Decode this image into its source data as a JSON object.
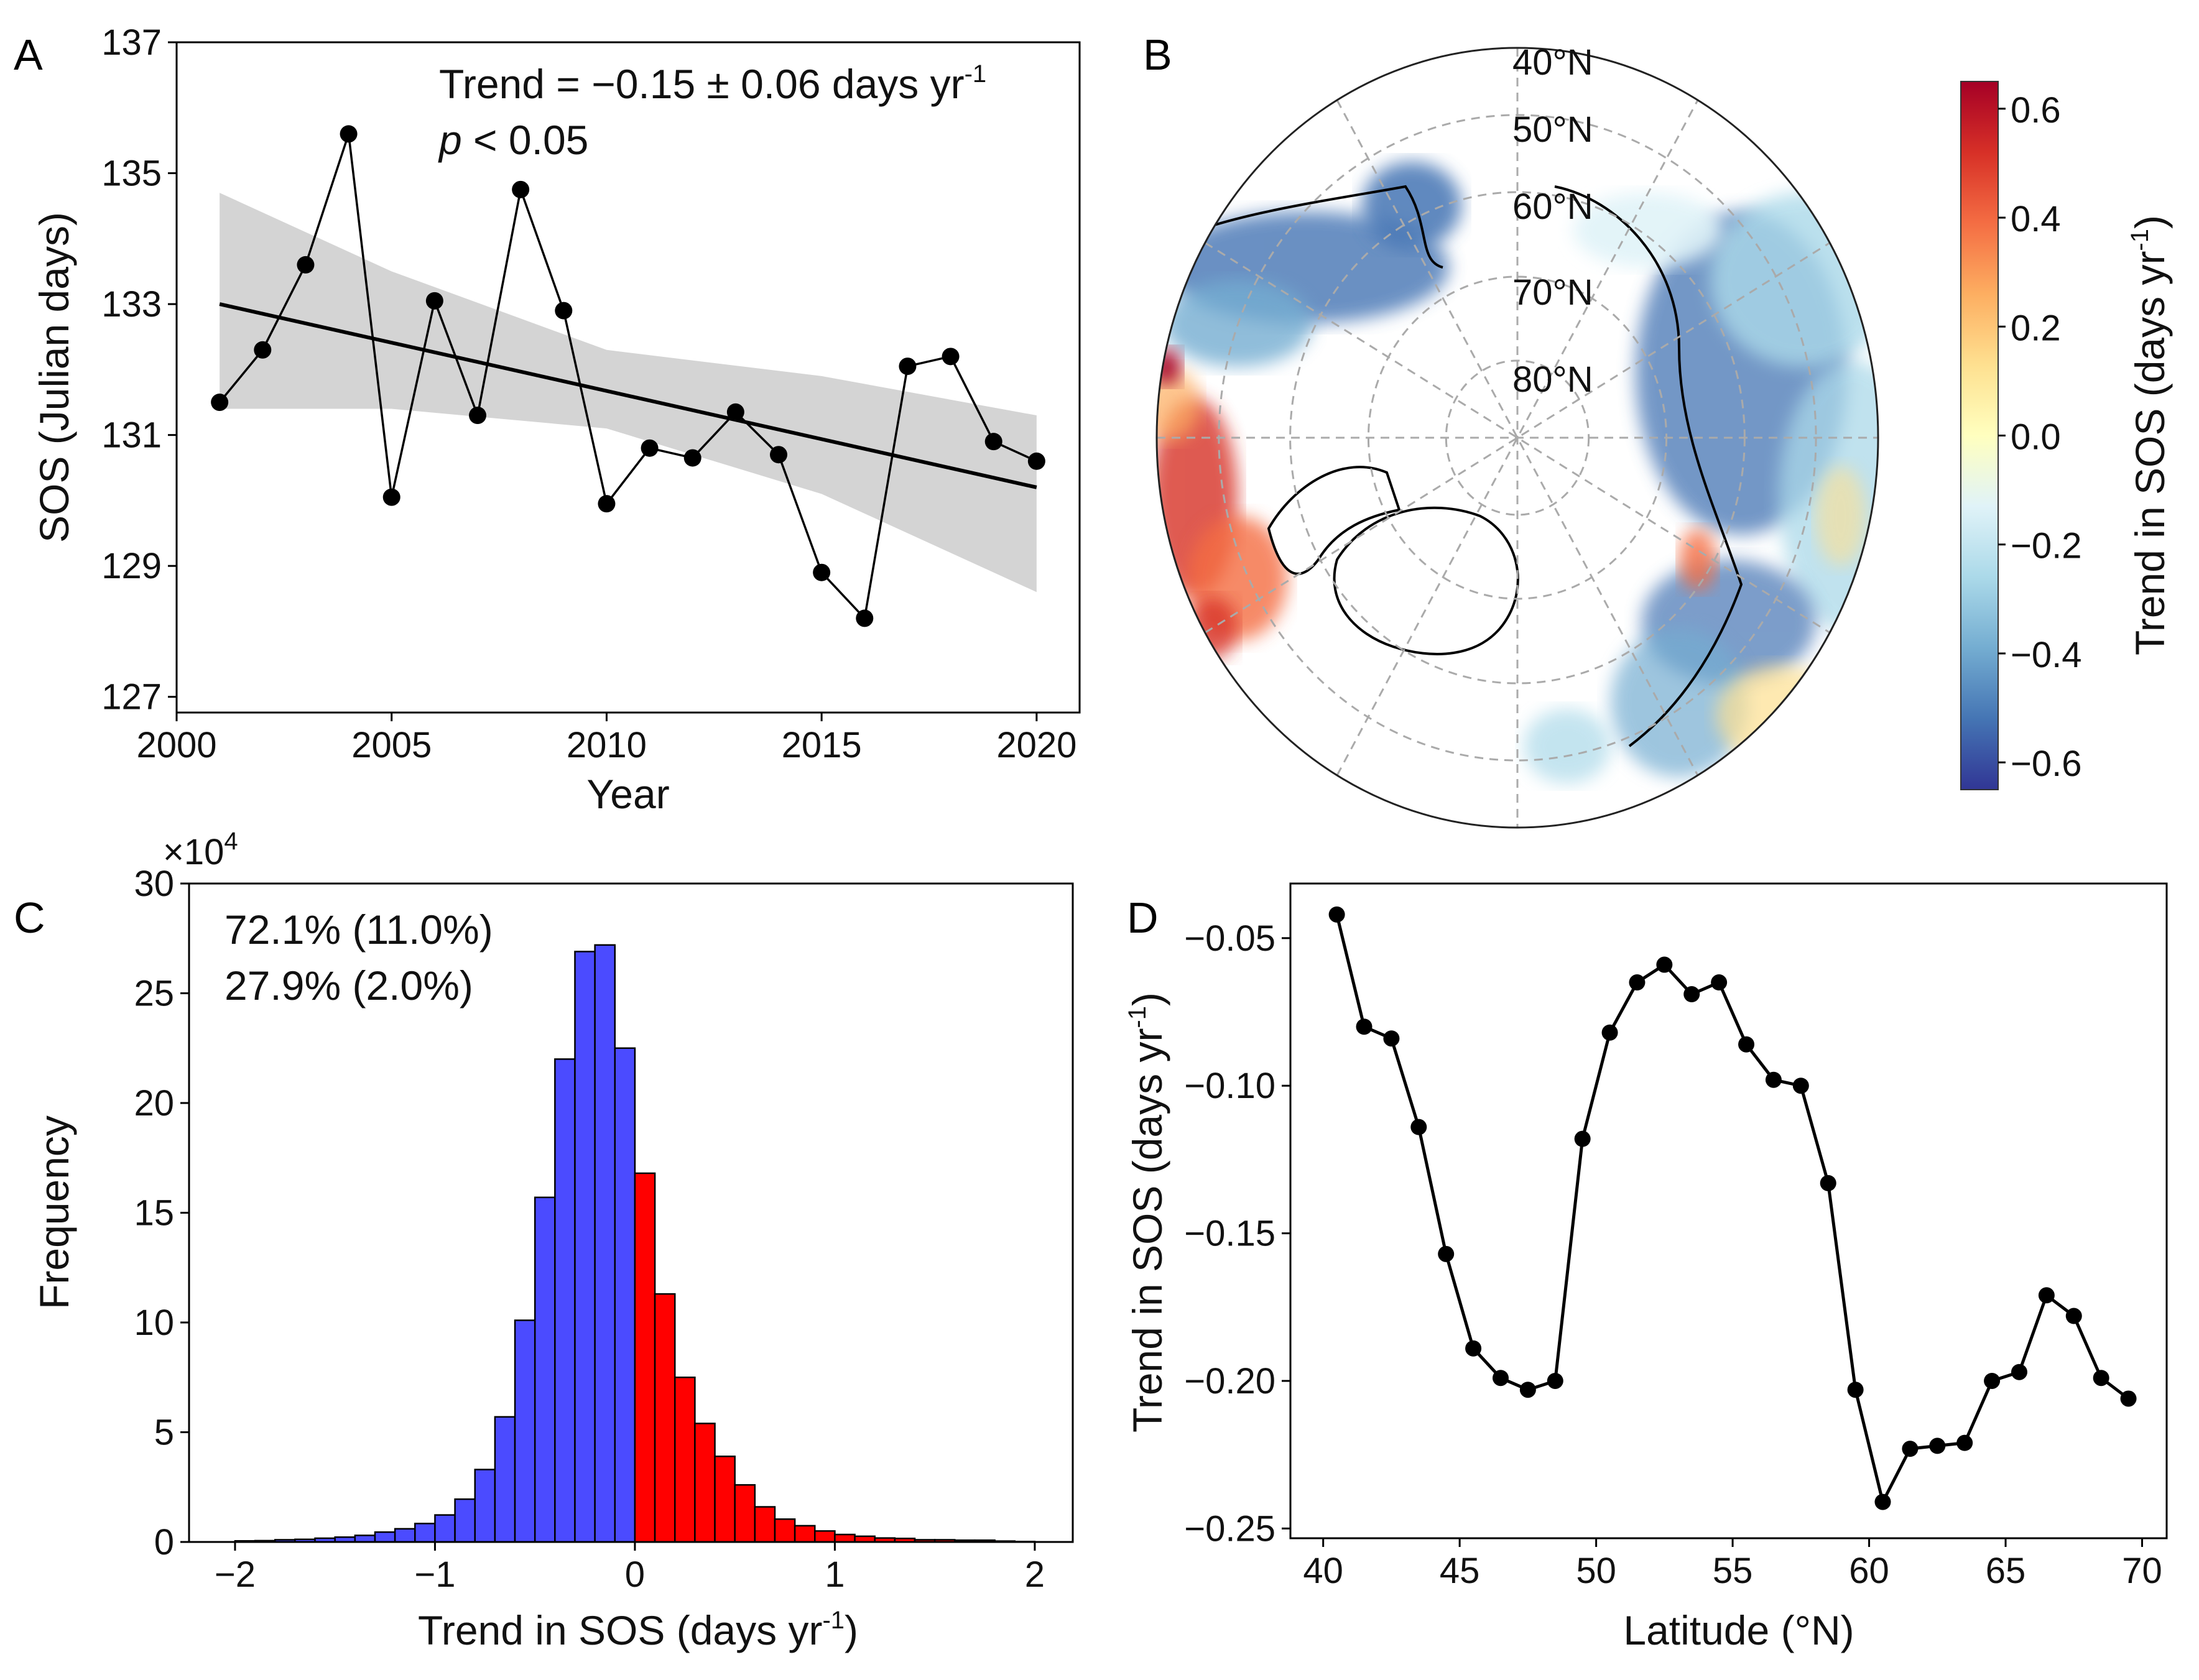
{
  "panels": {
    "a": "A",
    "b": "B",
    "c": "C",
    "d": "D"
  },
  "chart_data": [
    {
      "panel": "A",
      "type": "line",
      "xlabel": "Year",
      "ylabel": "SOS (Julian days)",
      "xlim": [
        2000,
        2021
      ],
      "ylim": [
        126.76,
        137
      ],
      "xticks": [
        2000,
        2005,
        2010,
        2015,
        2020
      ],
      "yticks": [
        127,
        129,
        131,
        133,
        135,
        137
      ],
      "x": [
        2001,
        2002,
        2003,
        2004,
        2005,
        2006,
        2007,
        2008,
        2009,
        2010,
        2011,
        2012,
        2013,
        2014,
        2015,
        2016,
        2017,
        2018,
        2019,
        2020
      ],
      "y": [
        131.5,
        132.3,
        133.6,
        135.6,
        130.05,
        133.05,
        131.3,
        134.75,
        132.9,
        129.95,
        130.8,
        130.65,
        131.35,
        130.7,
        128.9,
        128.2,
        132.05,
        132.2,
        130.9,
        130.6
      ],
      "trend_line": {
        "x": [
          2001,
          2020
        ],
        "y": [
          133.0,
          130.2
        ]
      },
      "confidence_band": {
        "x": [
          2001,
          2005,
          2010,
          2015,
          2020
        ],
        "upper": [
          134.7,
          133.5,
          132.3,
          131.9,
          131.3
        ],
        "lower": [
          131.4,
          131.4,
          131.1,
          130.1,
          128.6
        ]
      },
      "annotation": {
        "trend_text": "Trend = −0.15 ± 0.06 days yr",
        "trend_sup": "-1",
        "p_symbol": "p",
        "p_text": " < 0.05"
      }
    },
    {
      "panel": "B",
      "type": "map",
      "lat_labels": [
        "40°N",
        "50°N",
        "60°N",
        "70°N",
        "80°N"
      ],
      "colorbar": {
        "label": "Trend in SOS (days yr",
        "label_sup": "-1",
        "label_end": ")",
        "range": [
          -0.65,
          0.65
        ],
        "ticks": [
          "0.6",
          "0.4",
          "0.2",
          "0.0",
          "−0.2",
          "−0.4",
          "−0.6"
        ],
        "tick_values": [
          0.6,
          0.4,
          0.2,
          0.0,
          -0.2,
          -0.4,
          -0.6
        ],
        "colors": [
          "#313695",
          "#4575b4",
          "#74add1",
          "#abd9e9",
          "#e0f3f8",
          "#ffffbf",
          "#fee090",
          "#fdae61",
          "#f46d43",
          "#d73027",
          "#a50026"
        ]
      }
    },
    {
      "panel": "C",
      "type": "bar",
      "xlabel": "Trend in SOS (days yr",
      "xlabel_sup": "-1",
      "xlabel_end": ")",
      "ylabel": "Frequency",
      "multiplier": "×10",
      "multiplier_sup": "4",
      "xlim": [
        -2.23,
        2.19
      ],
      "ylim": [
        0,
        30
      ],
      "xticks": [
        -2,
        -1,
        0,
        1,
        2
      ],
      "xtick_labels": [
        "−2",
        "−1",
        "0",
        "1",
        "2"
      ],
      "yticks": [
        0,
        5,
        10,
        15,
        20,
        25,
        30
      ],
      "bin_start": -2,
      "bin_width": 0.1,
      "values": [
        0.05,
        0.06,
        0.1,
        0.12,
        0.17,
        0.22,
        0.3,
        0.45,
        0.6,
        0.84,
        1.23,
        1.95,
        3.3,
        5.7,
        10.1,
        15.7,
        22.0,
        26.9,
        27.2,
        22.5,
        16.8,
        11.3,
        7.5,
        5.4,
        3.9,
        2.6,
        1.6,
        1.04,
        0.74,
        0.5,
        0.34,
        0.26,
        0.18,
        0.16,
        0.1,
        0.1,
        0.08,
        0.08,
        0.04,
        0.02
      ],
      "colors": {
        "negative": "#4b4bff",
        "positive": "#ff0000"
      },
      "annotations": [
        {
          "text": "72.1% (11.0%)",
          "color": "#2222ee"
        },
        {
          "text": "27.9% (2.0%)",
          "color": "#e01010"
        }
      ]
    },
    {
      "panel": "D",
      "type": "line",
      "xlabel": "Latitude (°N)",
      "ylabel": "Trend in SOS (days yr",
      "ylabel_sup": "-1",
      "ylabel_end": ")",
      "xlim": [
        38.8,
        70.9
      ],
      "ylim": [
        -0.2533,
        -0.0315
      ],
      "xticks": [
        40,
        45,
        50,
        55,
        60,
        65,
        70
      ],
      "yticks": [
        -0.05,
        -0.1,
        -0.15,
        -0.2,
        -0.25
      ],
      "ytick_labels": [
        "−0.05",
        "−0.10",
        "−0.15",
        "−0.20",
        "−0.25"
      ],
      "x": [
        40.5,
        41.5,
        42.5,
        43.5,
        44.5,
        45.5,
        46.5,
        47.5,
        48.5,
        49.5,
        50.5,
        51.5,
        52.5,
        53.5,
        54.5,
        55.5,
        56.5,
        57.5,
        58.5,
        59.5,
        60.5,
        61.5,
        62.5,
        63.5,
        64.5,
        65.5,
        66.5,
        67.5,
        68.5,
        69.5
      ],
      "y": [
        -0.042,
        -0.08,
        -0.084,
        -0.114,
        -0.157,
        -0.189,
        -0.199,
        -0.203,
        -0.2,
        -0.118,
        -0.082,
        -0.065,
        -0.059,
        -0.069,
        -0.065,
        -0.086,
        -0.098,
        -0.1,
        -0.133,
        -0.203,
        -0.241,
        -0.223,
        -0.222,
        -0.221,
        -0.2,
        -0.197,
        -0.171,
        -0.178,
        -0.199,
        -0.206
      ]
    }
  ]
}
